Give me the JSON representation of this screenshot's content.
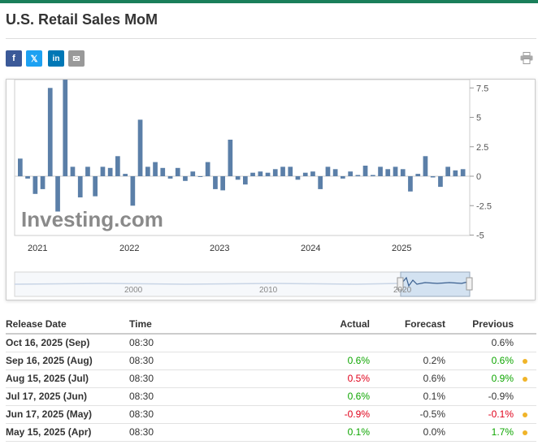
{
  "page": {
    "title": "U.S. Retail Sales MoM"
  },
  "share": [
    {
      "label": "f",
      "icon": "facebook-icon"
    },
    {
      "label": "𝕏",
      "icon": "x-twitter-icon"
    },
    {
      "label": "in",
      "icon": "linkedin-icon"
    },
    {
      "label": "✉",
      "icon": "email-icon"
    }
  ],
  "print_icon": "printer-icon",
  "watermark": "Investing.com",
  "colors": {
    "accent": "#1a7f5a",
    "bar": "#5b7fa8",
    "bar_light": "#a9bbd6",
    "positive": "#0ea600",
    "negative": "#e0001a",
    "dot": "#f0b429"
  },
  "chart_data": {
    "type": "bar",
    "y_ticks": [
      "7.5",
      "5",
      "2.5",
      "0",
      "-2.5",
      "-5"
    ],
    "ylim": [
      -5,
      7.5
    ],
    "x_labels": [
      "2021",
      "2022",
      "2023",
      "2024",
      "2025"
    ],
    "navigator_labels": [
      "2000",
      "2010",
      "2020"
    ],
    "values": [
      1.5,
      -0.2,
      -1.5,
      -1.1,
      7.5,
      -3.0,
      8.2,
      0.8,
      -1.8,
      0.8,
      -1.7,
      0.8,
      0.7,
      1.7,
      0.2,
      -2.5,
      4.8,
      0.8,
      1.2,
      0.7,
      -0.2,
      0.7,
      -0.4,
      0.4,
      0.0,
      1.2,
      -1.1,
      -1.2,
      3.1,
      -0.3,
      -0.7,
      0.3,
      0.4,
      0.3,
      0.6,
      0.8,
      0.8,
      -0.3,
      0.3,
      0.4,
      -1.1,
      0.8,
      0.6,
      -0.2,
      0.4,
      0.1,
      0.9,
      0.1,
      0.8,
      0.6,
      0.8,
      0.6,
      -1.3,
      0.2,
      1.7,
      -0.1,
      -0.9,
      0.8,
      0.5,
      0.6
    ]
  },
  "table": {
    "headers": {
      "release_date": "Release Date",
      "time": "Time",
      "actual": "Actual",
      "forecast": "Forecast",
      "previous": "Previous"
    },
    "rows": [
      {
        "date": "Oct 16, 2025 (Sep)",
        "time": "08:30",
        "actual": "",
        "forecast": "",
        "previous": "0.6%",
        "actual_class": "",
        "previous_class": "",
        "dot": false
      },
      {
        "date": "Sep 16, 2025 (Aug)",
        "time": "08:30",
        "actual": "0.6%",
        "forecast": "0.2%",
        "previous": "0.6%",
        "actual_class": "pos",
        "previous_class": "pos",
        "dot": true
      },
      {
        "date": "Aug 15, 2025 (Jul)",
        "time": "08:30",
        "actual": "0.5%",
        "forecast": "0.6%",
        "previous": "0.9%",
        "actual_class": "neg",
        "previous_class": "pos",
        "dot": true
      },
      {
        "date": "Jul 17, 2025 (Jun)",
        "time": "08:30",
        "actual": "0.6%",
        "forecast": "0.1%",
        "previous": "-0.9%",
        "actual_class": "pos",
        "previous_class": "",
        "dot": false
      },
      {
        "date": "Jun 17, 2025 (May)",
        "time": "08:30",
        "actual": "-0.9%",
        "forecast": "-0.5%",
        "previous": "-0.1%",
        "actual_class": "neg",
        "previous_class": "neg",
        "dot": true
      },
      {
        "date": "May 15, 2025 (Apr)",
        "time": "08:30",
        "actual": "0.1%",
        "forecast": "0.0%",
        "previous": "1.7%",
        "actual_class": "pos",
        "previous_class": "pos",
        "dot": true
      }
    ]
  }
}
